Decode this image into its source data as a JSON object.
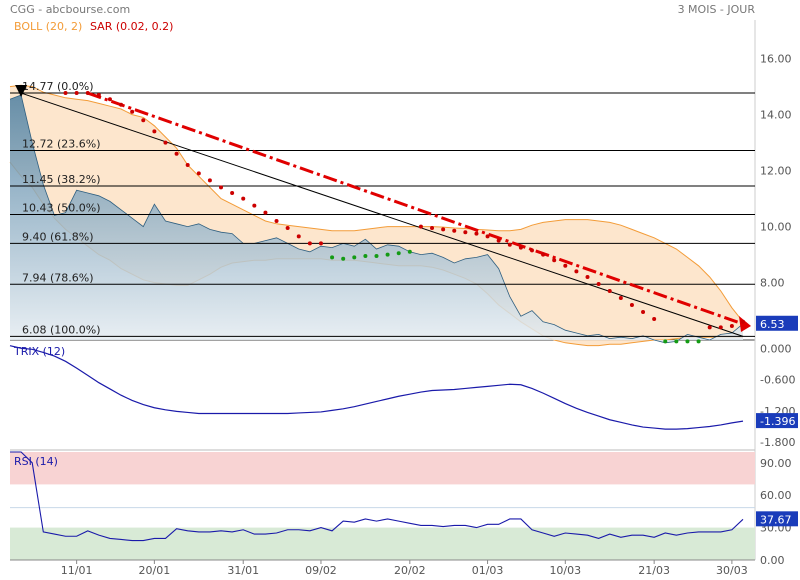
{
  "header": {
    "left": "CGG - abcbourse.com",
    "right": "3 MOIS - JOUR"
  },
  "indicators": {
    "boll": "BOLL (20, 2)",
    "sar": "SAR (0.02, 0.2)"
  },
  "colors": {
    "price_fill_top": "#4d7fa1",
    "price_fill_bottom": "#dfe8ee",
    "boll_band": "#f39c38",
    "boll_fill": "#fde2c4",
    "sar_up": "#cc0000",
    "sar_down": "#149b14",
    "trend": "#e00000",
    "trix": "#1a1aaa",
    "rsi": "#1a1aaa",
    "badge": "#1a3cba"
  },
  "chart_data": [
    {
      "type": "area",
      "name_label": "price",
      "x_labels": [
        "11/01",
        "20/01",
        "31/01",
        "09/02",
        "20/02",
        "01/03",
        "10/03",
        "21/03",
        "30/03"
      ],
      "x_label_index": [
        6,
        13,
        21,
        28,
        36,
        43,
        50,
        58,
        65
      ],
      "n": 67,
      "close": [
        14.55,
        14.7,
        13.0,
        11.5,
        10.4,
        10.5,
        11.3,
        11.2,
        11.1,
        10.9,
        10.6,
        10.3,
        10.0,
        10.8,
        10.2,
        10.1,
        10.0,
        10.1,
        9.9,
        9.8,
        9.75,
        9.4,
        9.4,
        9.5,
        9.6,
        9.4,
        9.2,
        9.1,
        9.3,
        9.25,
        9.4,
        9.3,
        9.55,
        9.2,
        9.35,
        9.3,
        9.1,
        9.0,
        9.05,
        8.9,
        8.7,
        8.85,
        8.9,
        9.0,
        8.5,
        7.5,
        6.8,
        7.0,
        6.6,
        6.5,
        6.3,
        6.2,
        6.1,
        6.15,
        6.0,
        6.05,
        6.0,
        6.1,
        5.95,
        5.85,
        5.9,
        6.15,
        6.05,
        5.95,
        6.15,
        6.2,
        6.53
      ],
      "upper": [
        15.0,
        15.05,
        15.0,
        14.8,
        14.7,
        14.6,
        14.55,
        14.5,
        14.4,
        14.3,
        14.2,
        14.0,
        13.9,
        13.6,
        13.2,
        12.8,
        12.2,
        11.8,
        11.4,
        11.0,
        10.8,
        10.6,
        10.4,
        10.2,
        10.1,
        10.05,
        10.0,
        9.95,
        9.9,
        9.85,
        9.85,
        9.85,
        9.9,
        9.95,
        10.0,
        10.0,
        10.0,
        10.0,
        10.0,
        9.98,
        9.95,
        9.93,
        9.9,
        9.88,
        9.85,
        9.85,
        9.9,
        10.05,
        10.15,
        10.2,
        10.25,
        10.25,
        10.25,
        10.2,
        10.15,
        10.05,
        9.9,
        9.75,
        9.6,
        9.4,
        9.2,
        8.9,
        8.6,
        8.2,
        7.7,
        7.1,
        6.6
      ],
      "lower": [
        12.3,
        11.8,
        11.4,
        10.8,
        10.3,
        9.9,
        9.6,
        9.3,
        9.0,
        8.8,
        8.5,
        8.3,
        8.1,
        8.0,
        7.95,
        7.9,
        7.9,
        8.1,
        8.3,
        8.55,
        8.7,
        8.75,
        8.8,
        8.8,
        8.85,
        8.85,
        8.85,
        8.85,
        8.85,
        8.8,
        8.8,
        8.8,
        8.75,
        8.7,
        8.65,
        8.6,
        8.6,
        8.6,
        8.55,
        8.45,
        8.3,
        8.15,
        7.95,
        7.6,
        7.2,
        6.9,
        6.6,
        6.35,
        6.1,
        5.95,
        5.85,
        5.8,
        5.75,
        5.75,
        5.8,
        5.8,
        5.85,
        5.9,
        5.95,
        5.95,
        6.0,
        6.05,
        6.05,
        6.05,
        6.05,
        6.05,
        6.05
      ],
      "sar": [
        null,
        null,
        null,
        null,
        null,
        14.77,
        14.77,
        14.77,
        14.7,
        14.55,
        14.35,
        14.1,
        13.8,
        13.4,
        13.0,
        12.6,
        12.2,
        11.9,
        11.65,
        11.4,
        11.2,
        11.0,
        10.75,
        10.5,
        10.2,
        9.95,
        9.65,
        9.4,
        9.4,
        8.9,
        8.85,
        8.9,
        8.95,
        8.95,
        9.0,
        9.05,
        9.1,
        10.0,
        9.95,
        9.9,
        9.85,
        9.8,
        9.75,
        9.65,
        9.5,
        9.35,
        9.25,
        9.15,
        9.0,
        8.8,
        8.6,
        8.4,
        8.2,
        7.95,
        7.7,
        7.45,
        7.2,
        6.95,
        6.7,
        5.9,
        5.9,
        5.9,
        5.9,
        6.4,
        6.4,
        6.45,
        6.6
      ],
      "sar_trend": [
        "",
        "",
        "",
        "",
        "",
        "up",
        "up",
        "up",
        "up",
        "up",
        "up",
        "up",
        "up",
        "up",
        "up",
        "up",
        "up",
        "up",
        "up",
        "up",
        "up",
        "up",
        "up",
        "up",
        "up",
        "up",
        "up",
        "up",
        "up",
        "down",
        "down",
        "down",
        "down",
        "down",
        "down",
        "down",
        "down",
        "up",
        "up",
        "up",
        "up",
        "up",
        "up",
        "up",
        "up",
        "up",
        "up",
        "up",
        "up",
        "up",
        "up",
        "up",
        "up",
        "up",
        "up",
        "up",
        "up",
        "up",
        "up",
        "down",
        "down",
        "down",
        "down",
        "up",
        "up",
        "up",
        "up"
      ],
      "fib_levels": [
        {
          "label": "14.77  (0.0%)",
          "value": 14.77
        },
        {
          "label": "12.72  (23.6%)",
          "value": 12.72
        },
        {
          "label": "11.45  (38.2%)",
          "value": 11.45
        },
        {
          "label": "10.43  (50.0%)",
          "value": 10.43
        },
        {
          "label": "9.40  (61.8%)",
          "value": 9.4
        },
        {
          "label": "7.94  (78.6%)",
          "value": 7.94
        },
        {
          "label": "6.08  (100.0%)",
          "value": 6.08
        }
      ],
      "y_ticks": [
        "16.00",
        "14.00",
        "12.00",
        "10.00",
        "8.00"
      ],
      "y_tick_values": [
        16,
        14,
        12,
        10,
        8
      ],
      "ylim": [
        5.95,
        17.2
      ],
      "last_value": "6.53"
    },
    {
      "type": "line",
      "name_label": "TRIX (12)",
      "values": [
        0.05,
        0.0,
        -0.02,
        -0.08,
        -0.15,
        -0.25,
        -0.38,
        -0.52,
        -0.66,
        -0.78,
        -0.9,
        -1.0,
        -1.08,
        -1.14,
        -1.18,
        -1.21,
        -1.23,
        -1.25,
        -1.25,
        -1.25,
        -1.25,
        -1.25,
        -1.25,
        -1.25,
        -1.25,
        -1.25,
        -1.24,
        -1.23,
        -1.22,
        -1.19,
        -1.16,
        -1.12,
        -1.07,
        -1.02,
        -0.97,
        -0.92,
        -0.88,
        -0.84,
        -0.81,
        -0.8,
        -0.79,
        -0.77,
        -0.75,
        -0.73,
        -0.71,
        -0.69,
        -0.7,
        -0.77,
        -0.86,
        -0.96,
        -1.06,
        -1.15,
        -1.23,
        -1.3,
        -1.37,
        -1.42,
        -1.47,
        -1.51,
        -1.53,
        -1.55,
        -1.55,
        -1.54,
        -1.52,
        -1.5,
        -1.47,
        -1.43,
        -1.396
      ],
      "y_ticks": [
        "0.000",
        "-0.600",
        "-1.200",
        "-1.800"
      ],
      "y_tick_values": [
        0,
        -0.6,
        -1.2,
        -1.8
      ],
      "ylim": [
        -1.95,
        0.12
      ],
      "last_value": "-1.396"
    },
    {
      "type": "line",
      "name_label": "RSI (14)",
      "values": [
        100,
        100,
        90,
        26,
        24,
        22,
        22,
        27,
        23,
        20,
        19,
        18,
        18,
        20,
        20,
        29,
        27,
        26,
        26,
        27,
        26,
        28,
        24,
        24,
        25,
        28,
        28,
        27,
        30,
        27,
        36,
        35,
        38,
        36,
        38,
        36,
        34,
        32,
        32,
        31,
        32,
        32,
        30,
        33,
        33,
        38,
        38,
        28,
        25,
        22,
        25,
        24,
        23,
        20,
        24,
        21,
        23,
        23,
        21,
        25,
        23,
        25,
        26,
        26,
        26,
        28,
        37.67
      ],
      "zones": {
        "overbought": 70,
        "oversold": 30
      },
      "y_ticks": [
        "90.00",
        "60.00",
        "30.00",
        "0.00"
      ],
      "y_tick_values": [
        90,
        60,
        30,
        0
      ],
      "ylim": [
        0,
        100
      ],
      "last_value": "37.67"
    }
  ]
}
